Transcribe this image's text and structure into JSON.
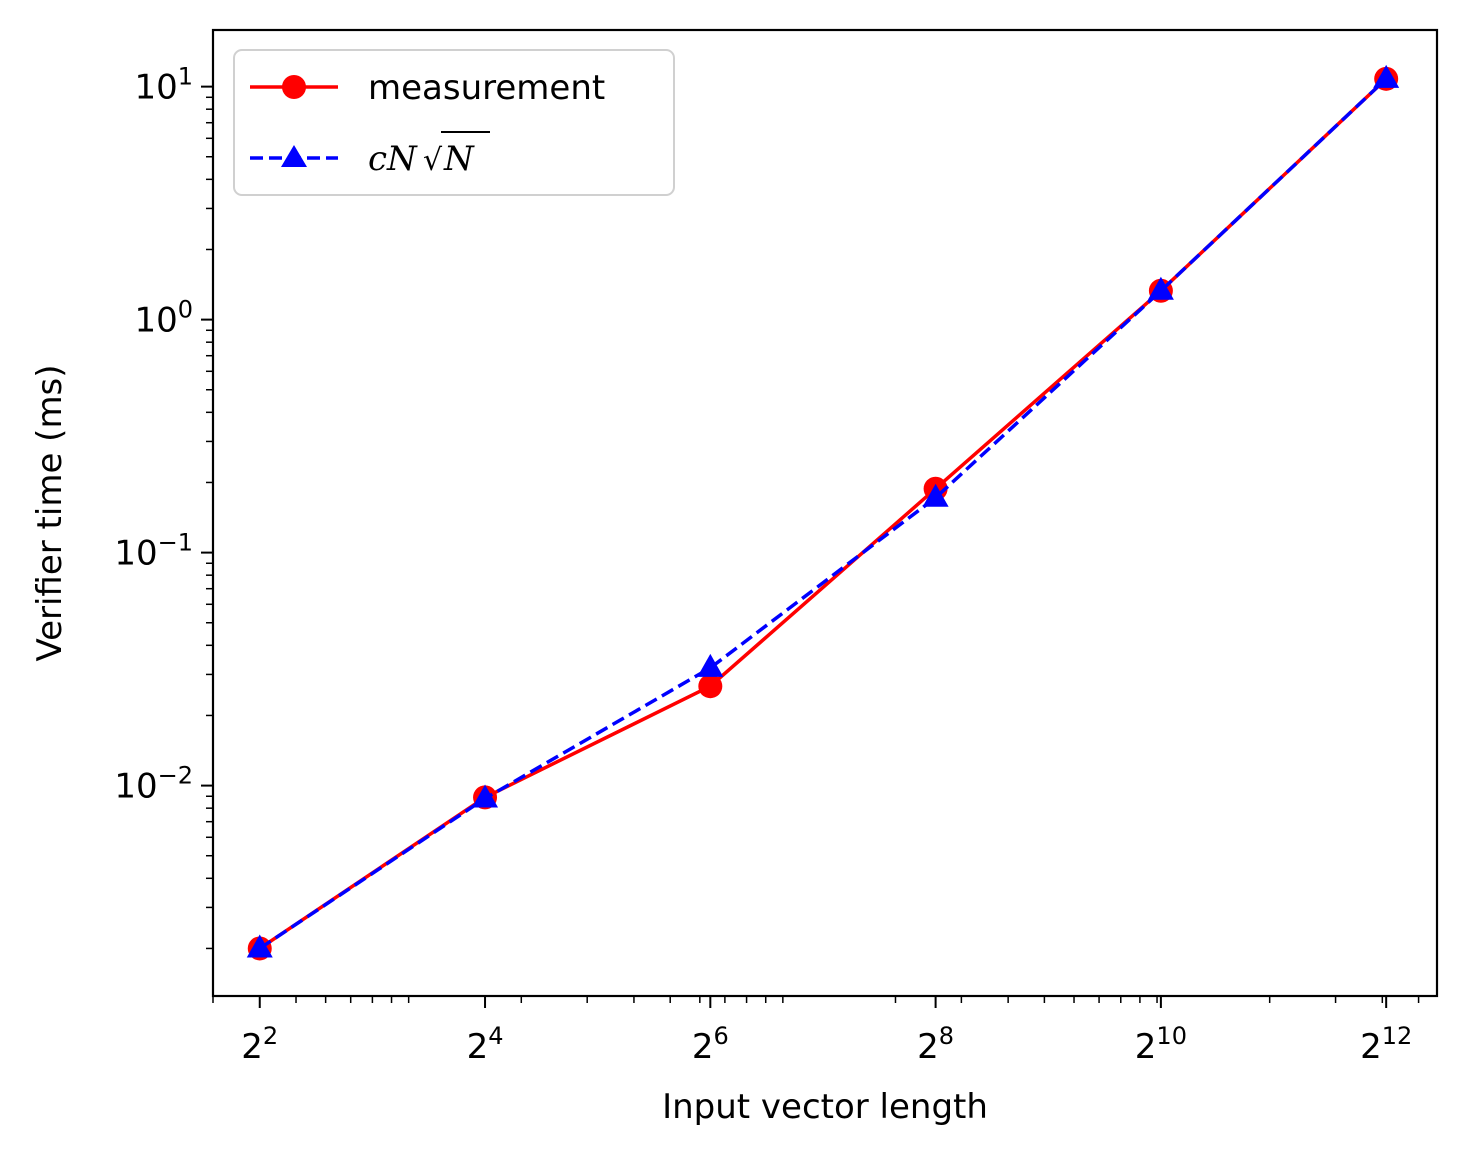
{
  "chart_data": {
    "type": "line",
    "title": "",
    "xlabel": "Input vector length",
    "ylabel": "Verifier time (ms)",
    "xscale": "log2",
    "yscale": "log10",
    "x": [
      4,
      16,
      64,
      256,
      1024,
      4096
    ],
    "x_tick_labels": [
      {
        "base": "2",
        "exp": "2"
      },
      {
        "base": "2",
        "exp": "4"
      },
      {
        "base": "2",
        "exp": "6"
      },
      {
        "base": "2",
        "exp": "8"
      },
      {
        "base": "2",
        "exp": "10"
      },
      {
        "base": "2",
        "exp": "12"
      }
    ],
    "y_tick_labels": [
      {
        "base": "10",
        "exp": "−2"
      },
      {
        "base": "10",
        "exp": "−1"
      },
      {
        "base": "10",
        "exp": "0"
      },
      {
        "base": "10",
        "exp": "1"
      }
    ],
    "xlim": [
      3.0,
      5600
    ],
    "ylim": [
      0.00125,
      17.5
    ],
    "grid": false,
    "legend_position": "top-left",
    "series": [
      {
        "name": "measurement",
        "color": "#ff0000",
        "marker": "circle",
        "linestyle": "solid",
        "values": [
          0.002,
          0.0089,
          0.0267,
          0.188,
          1.33,
          10.8
        ]
      },
      {
        "name_parts": {
          "prefix": "cN",
          "root": "√",
          "radicand": "N"
        },
        "color": "#0000ff",
        "marker": "triangle",
        "linestyle": "dashed",
        "values": [
          0.002,
          0.0088,
          0.032,
          0.172,
          1.33,
          10.8
        ]
      }
    ]
  }
}
